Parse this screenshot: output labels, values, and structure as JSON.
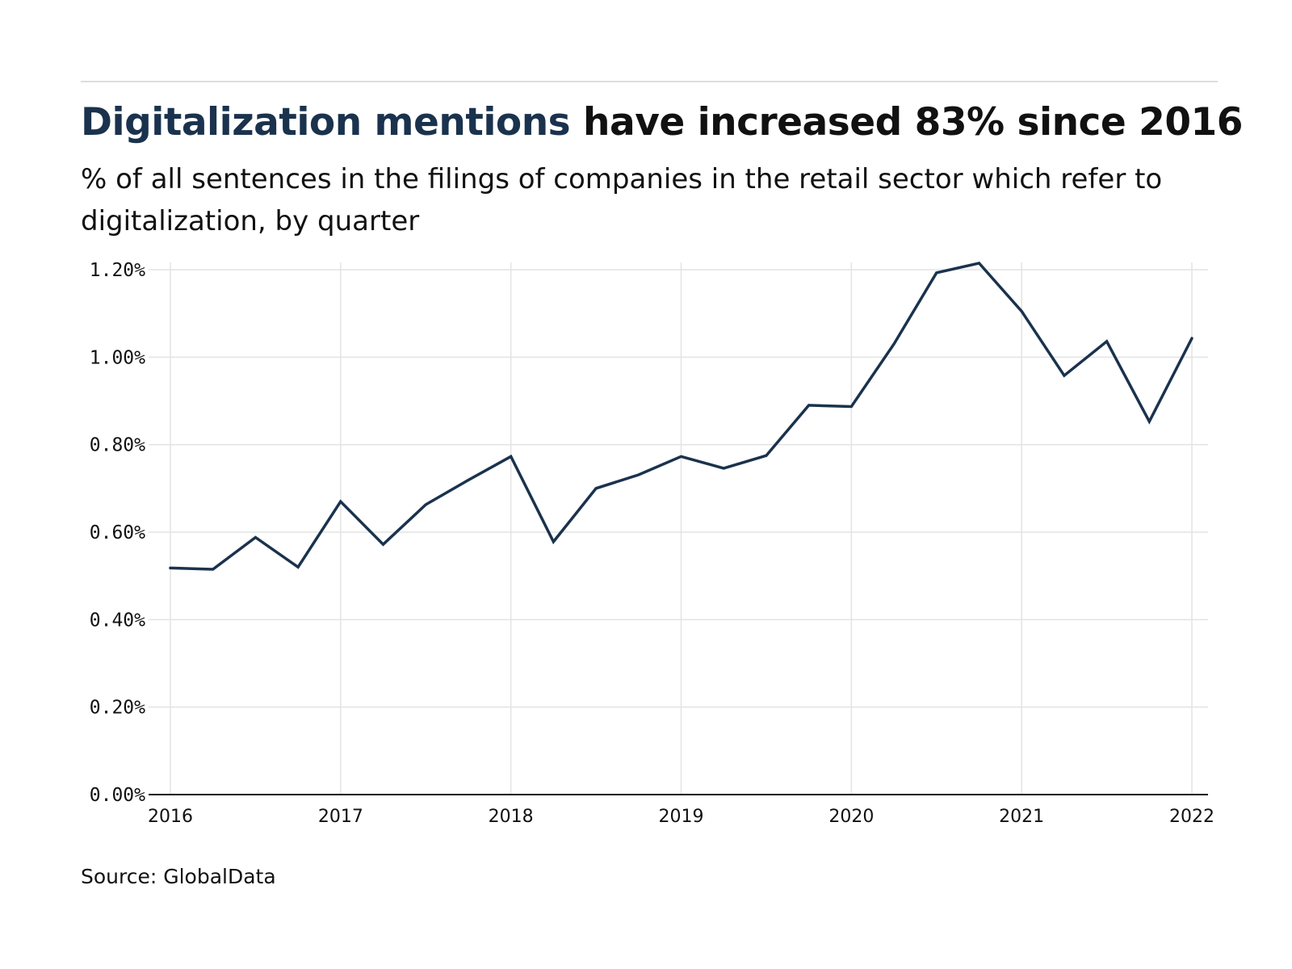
{
  "title": {
    "accent": "Digitalization mentions",
    "rest": " have increased 83% since 2016"
  },
  "subtitle": "% of all sentences in the filings of companies in the retail sector which refer to digitalization, by quarter",
  "source": "Source: GlobalData",
  "colors": {
    "accent": "#1a324d",
    "line": "#1a324d",
    "grid": "#e3e3e3",
    "axis": "#111111"
  },
  "chart_data": {
    "type": "line",
    "x": [
      2016,
      2016.25,
      2016.5,
      2016.75,
      2017,
      2017.25,
      2017.5,
      2017.75,
      2018,
      2018.25,
      2018.5,
      2018.75,
      2019,
      2019.25,
      2019.5,
      2019.75,
      2020,
      2020.25,
      2020.5,
      2020.75,
      2021,
      2021.25,
      2021.5,
      2021.75,
      2022
    ],
    "series": [
      {
        "values": [
          0.518,
          0.515,
          0.588,
          0.52,
          0.67,
          0.572,
          0.663,
          0.719,
          0.773,
          0.578,
          0.7,
          0.731,
          0.773,
          0.746,
          0.775,
          0.89,
          0.887,
          1.03,
          1.193,
          1.215,
          1.105,
          0.958,
          1.036,
          0.853,
          1.043
        ]
      }
    ],
    "x_ticks": [
      "2016",
      "2017",
      "2018",
      "2019",
      "2020",
      "2021",
      "2022"
    ],
    "x_tick_values": [
      2016,
      2017,
      2018,
      2019,
      2020,
      2021,
      2022
    ],
    "y_ticks": [
      "0.00%",
      "0.20%",
      "0.40%",
      "0.60%",
      "0.80%",
      "1.00%",
      "1.20%"
    ],
    "y_tick_values": [
      0,
      0.2,
      0.4,
      0.6,
      0.8,
      1.0,
      1.2
    ],
    "xlim": [
      2016,
      2022
    ],
    "ylim": [
      0,
      1.2
    ],
    "xlabel": "",
    "ylabel": "",
    "grid": true,
    "legend": "none"
  }
}
